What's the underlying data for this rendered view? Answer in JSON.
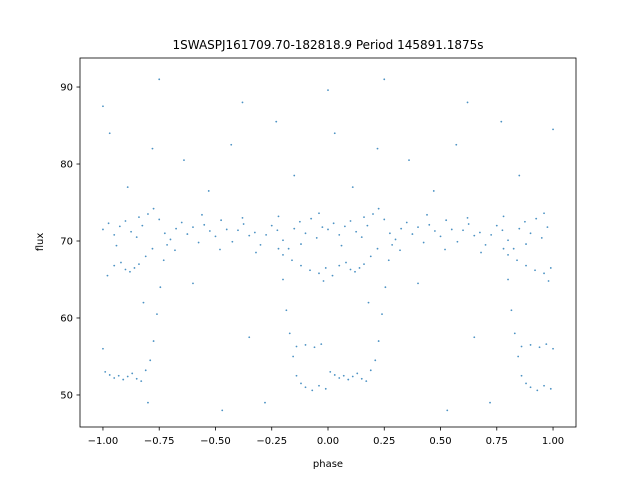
{
  "chart_data": {
    "type": "scatter",
    "title": "1SWASPJ161709.70-182818.9 Period 145891.1875s",
    "xlabel": "phase",
    "ylabel": "flux",
    "xlim": [
      -1.102,
      1.102
    ],
    "ylim": [
      45.84,
      93.77
    ],
    "xticks": [
      -1.0,
      -0.75,
      -0.5,
      -0.25,
      0.0,
      0.25,
      0.5,
      0.75,
      1.0
    ],
    "xtick_labels": [
      "−1.00",
      "−0.75",
      "−0.50",
      "−0.25",
      "0.00",
      "0.25",
      "0.50",
      "0.75",
      "1.00"
    ],
    "yticks": [
      50,
      60,
      70,
      80,
      90
    ],
    "ytick_labels": [
      "50",
      "60",
      "70",
      "80",
      "90"
    ],
    "grid": false,
    "legend": "none",
    "marker_color": "#1f77b4",
    "points": [
      [
        0.0,
        71.5
      ],
      [
        0.025,
        72.3
      ],
      [
        0.05,
        70.8
      ],
      [
        0.075,
        71.9
      ],
      [
        0.1,
        72.6
      ],
      [
        0.125,
        71.2
      ],
      [
        0.15,
        70.5
      ],
      [
        0.175,
        72.0
      ],
      [
        0.2,
        73.5
      ],
      [
        0.225,
        74.2
      ],
      [
        0.25,
        72.8
      ],
      [
        0.275,
        71.0
      ],
      [
        0.3,
        70.2
      ],
      [
        0.325,
        71.6
      ],
      [
        0.35,
        72.4
      ],
      [
        0.375,
        70.9
      ],
      [
        0.4,
        71.8
      ],
      [
        0.425,
        69.8
      ],
      [
        0.45,
        72.1
      ],
      [
        0.475,
        71.3
      ],
      [
        0.5,
        70.6
      ],
      [
        0.525,
        72.7
      ],
      [
        0.55,
        71.5
      ],
      [
        0.575,
        69.9
      ],
      [
        0.6,
        71.4
      ],
      [
        0.625,
        72.2
      ],
      [
        0.65,
        70.7
      ],
      [
        0.675,
        71.1
      ],
      [
        0.7,
        69.5
      ],
      [
        0.725,
        70.8
      ],
      [
        0.75,
        72.0
      ],
      [
        0.775,
        71.4
      ],
      [
        0.8,
        70.1
      ],
      [
        0.825,
        69.0
      ],
      [
        0.85,
        71.6
      ],
      [
        0.875,
        72.5
      ],
      [
        0.9,
        71.0
      ],
      [
        0.925,
        72.9
      ],
      [
        0.95,
        70.4
      ],
      [
        0.975,
        71.8
      ],
      [
        0.06,
        69.4
      ],
      [
        0.16,
        73.1
      ],
      [
        0.32,
        68.8
      ],
      [
        0.44,
        73.4
      ],
      [
        0.52,
        68.9
      ],
      [
        0.62,
        73.0
      ],
      [
        0.68,
        68.5
      ],
      [
        0.78,
        73.2
      ],
      [
        0.88,
        69.6
      ],
      [
        0.96,
        73.6
      ],
      [
        0.02,
        65.5
      ],
      [
        0.05,
        66.8
      ],
      [
        0.08,
        67.2
      ],
      [
        0.1,
        66.3
      ],
      [
        0.12,
        66.0
      ],
      [
        0.14,
        66.5
      ],
      [
        0.16,
        67.0
      ],
      [
        0.19,
        68.0
      ],
      [
        0.22,
        69.0
      ],
      [
        0.8,
        68.2
      ],
      [
        0.84,
        67.5
      ],
      [
        0.88,
        66.8
      ],
      [
        0.92,
        66.2
      ],
      [
        0.96,
        65.8
      ],
      [
        0.99,
        66.5
      ],
      [
        0.98,
        64.8
      ],
      [
        0.01,
        53.0
      ],
      [
        0.03,
        52.6
      ],
      [
        0.05,
        52.2
      ],
      [
        0.07,
        52.5
      ],
      [
        0.09,
        52.0
      ],
      [
        0.11,
        52.4
      ],
      [
        0.13,
        52.8
      ],
      [
        0.15,
        52.1
      ],
      [
        0.17,
        51.8
      ],
      [
        0.19,
        53.2
      ],
      [
        0.21,
        54.5
      ],
      [
        0.225,
        57.0
      ],
      [
        0.24,
        60.5
      ],
      [
        0.255,
        64.0
      ],
      [
        0.27,
        67.5
      ],
      [
        0.285,
        69.5
      ],
      [
        0.78,
        69.0
      ],
      [
        0.8,
        65.0
      ],
      [
        0.815,
        61.0
      ],
      [
        0.83,
        58.0
      ],
      [
        0.845,
        55.0
      ],
      [
        0.86,
        52.5
      ],
      [
        0.88,
        51.5
      ],
      [
        0.9,
        51.0
      ],
      [
        0.93,
        50.6
      ],
      [
        0.96,
        51.2
      ],
      [
        0.99,
        50.8
      ],
      [
        0.86,
        56.3
      ],
      [
        0.9,
        56.5
      ],
      [
        0.94,
        56.2
      ],
      [
        0.97,
        56.6
      ],
      [
        1.0,
        56.0
      ],
      [
        0.03,
        84.0
      ],
      [
        0.11,
        77.0
      ],
      [
        0.22,
        82.0
      ],
      [
        0.25,
        91.0
      ],
      [
        0.36,
        80.5
      ],
      [
        0.47,
        76.5
      ],
      [
        0.57,
        82.5
      ],
      [
        0.62,
        88.0
      ],
      [
        0.77,
        85.5
      ],
      [
        0.85,
        78.5
      ],
      [
        0.18,
        62.0
      ],
      [
        0.4,
        64.5
      ],
      [
        0.65,
        57.5
      ],
      [
        0.53,
        48.0
      ],
      [
        0.72,
        49.0
      ],
      [
        0.0,
        89.6
      ],
      [
        1.0,
        84.5
      ],
      [
        -1.0,
        71.5
      ],
      [
        -0.975,
        72.3
      ],
      [
        -0.95,
        70.8
      ],
      [
        -0.925,
        71.9
      ],
      [
        -0.9,
        72.6
      ],
      [
        -0.875,
        71.2
      ],
      [
        -0.85,
        70.5
      ],
      [
        -0.825,
        72.0
      ],
      [
        -0.8,
        73.5
      ],
      [
        -0.775,
        74.2
      ],
      [
        -0.75,
        72.8
      ],
      [
        -0.725,
        71.0
      ],
      [
        -0.7,
        70.2
      ],
      [
        -0.675,
        71.6
      ],
      [
        -0.65,
        72.4
      ],
      [
        -0.625,
        70.9
      ],
      [
        -0.6,
        71.8
      ],
      [
        -0.575,
        69.8
      ],
      [
        -0.55,
        72.1
      ],
      [
        -0.525,
        71.3
      ],
      [
        -0.5,
        70.6
      ],
      [
        -0.475,
        72.7
      ],
      [
        -0.45,
        71.5
      ],
      [
        -0.425,
        69.9
      ],
      [
        -0.4,
        71.4
      ],
      [
        -0.375,
        72.2
      ],
      [
        -0.35,
        70.7
      ],
      [
        -0.325,
        71.1
      ],
      [
        -0.3,
        69.5
      ],
      [
        -0.275,
        70.8
      ],
      [
        -0.25,
        72.0
      ],
      [
        -0.225,
        71.4
      ],
      [
        -0.2,
        70.1
      ],
      [
        -0.175,
        69.0
      ],
      [
        -0.15,
        71.6
      ],
      [
        -0.125,
        72.5
      ],
      [
        -0.1,
        71.0
      ],
      [
        -0.075,
        72.9
      ],
      [
        -0.05,
        70.4
      ],
      [
        -0.025,
        71.8
      ],
      [
        -0.94,
        69.4
      ],
      [
        -0.84,
        73.1
      ],
      [
        -0.68,
        68.8
      ],
      [
        -0.56,
        73.4
      ],
      [
        -0.48,
        68.9
      ],
      [
        -0.38,
        73.0
      ],
      [
        -0.32,
        68.5
      ],
      [
        -0.22,
        73.2
      ],
      [
        -0.12,
        69.6
      ],
      [
        -0.04,
        73.6
      ],
      [
        -0.98,
        65.5
      ],
      [
        -0.95,
        66.8
      ],
      [
        -0.92,
        67.2
      ],
      [
        -0.9,
        66.3
      ],
      [
        -0.88,
        66.0
      ],
      [
        -0.86,
        66.5
      ],
      [
        -0.84,
        67.0
      ],
      [
        -0.81,
        68.0
      ],
      [
        -0.78,
        69.0
      ],
      [
        -0.2,
        68.2
      ],
      [
        -0.16,
        67.5
      ],
      [
        -0.12,
        66.8
      ],
      [
        -0.08,
        66.2
      ],
      [
        -0.04,
        65.8
      ],
      [
        -0.01,
        66.5
      ],
      [
        -0.02,
        64.8
      ],
      [
        -0.99,
        53.0
      ],
      [
        -0.97,
        52.6
      ],
      [
        -0.95,
        52.2
      ],
      [
        -0.93,
        52.5
      ],
      [
        -0.91,
        52.0
      ],
      [
        -0.89,
        52.4
      ],
      [
        -0.87,
        52.8
      ],
      [
        -0.85,
        52.1
      ],
      [
        -0.83,
        51.8
      ],
      [
        -0.81,
        53.2
      ],
      [
        -0.79,
        54.5
      ],
      [
        -0.775,
        57.0
      ],
      [
        -0.76,
        60.5
      ],
      [
        -0.745,
        64.0
      ],
      [
        -0.73,
        67.5
      ],
      [
        -0.715,
        69.5
      ],
      [
        -0.22,
        69.0
      ],
      [
        -0.2,
        65.0
      ],
      [
        -0.185,
        61.0
      ],
      [
        -0.17,
        58.0
      ],
      [
        -0.155,
        55.0
      ],
      [
        -0.14,
        52.5
      ],
      [
        -0.12,
        51.5
      ],
      [
        -0.1,
        51.0
      ],
      [
        -0.07,
        50.6
      ],
      [
        -0.04,
        51.2
      ],
      [
        -0.01,
        50.8
      ],
      [
        -0.14,
        56.3
      ],
      [
        -0.1,
        56.5
      ],
      [
        -0.06,
        56.2
      ],
      [
        -0.03,
        56.6
      ],
      [
        -1.0,
        56.0
      ],
      [
        -0.97,
        84.0
      ],
      [
        -0.89,
        77.0
      ],
      [
        -0.78,
        82.0
      ],
      [
        -0.75,
        91.0
      ],
      [
        -0.64,
        80.5
      ],
      [
        -0.53,
        76.5
      ],
      [
        -0.43,
        82.5
      ],
      [
        -0.38,
        88.0
      ],
      [
        -0.23,
        85.5
      ],
      [
        -0.15,
        78.5
      ],
      [
        -0.82,
        62.0
      ],
      [
        -0.6,
        64.5
      ],
      [
        -0.35,
        57.5
      ],
      [
        -0.47,
        48.0
      ],
      [
        -0.28,
        49.0
      ],
      [
        -1.0,
        87.5
      ],
      [
        -0.8,
        49.0
      ]
    ]
  }
}
